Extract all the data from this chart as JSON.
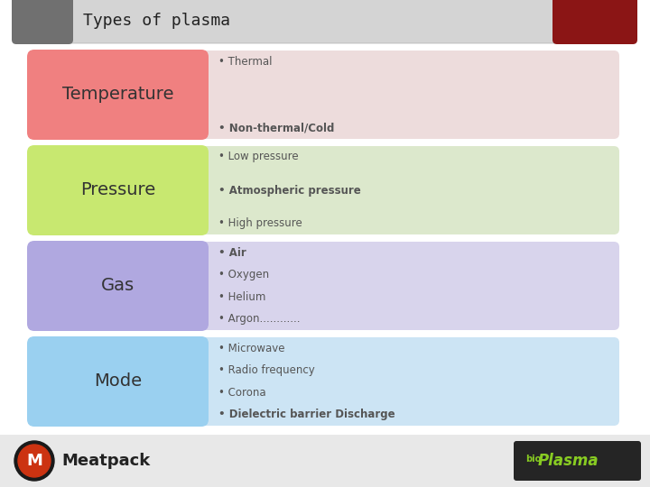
{
  "title": "Types of plasma",
  "title_fontsize": 13,
  "rows": [
    {
      "label": "Temperature",
      "label_bg": "#f08080",
      "content_bg": "#eddcdc",
      "items": [
        "• Thermal",
        "• Non-thermal/Cold"
      ],
      "item_bold": [
        false,
        true
      ]
    },
    {
      "label": "Pressure",
      "label_bg": "#c8e870",
      "content_bg": "#dce8cc",
      "items": [
        "• Low pressure",
        "• Atmospheric pressure",
        "• High pressure"
      ],
      "item_bold": [
        false,
        true,
        false
      ]
    },
    {
      "label": "Gas",
      "label_bg": "#b0a8e0",
      "content_bg": "#d8d4ec",
      "items": [
        "• Air",
        "• Oxygen",
        "• Helium",
        "• Argon............"
      ],
      "item_bold": [
        true,
        false,
        false,
        false
      ]
    },
    {
      "label": "Mode",
      "label_bg": "#9ad0f0",
      "content_bg": "#cce4f4",
      "items": [
        "• Microwave",
        "• Radio frequency",
        "• Corona",
        "• Dielectric barrier Discharge"
      ],
      "item_bold": [
        false,
        false,
        false,
        true
      ]
    }
  ],
  "header_bg": "#d4d4d4",
  "header_dark_left_color": "#707070",
  "header_dark_right_color": "#8b1515",
  "bottom_bg": "#e8e8e8",
  "white_bg": "#ffffff",
  "label_text_color": "#333333",
  "item_text_color": "#555555"
}
